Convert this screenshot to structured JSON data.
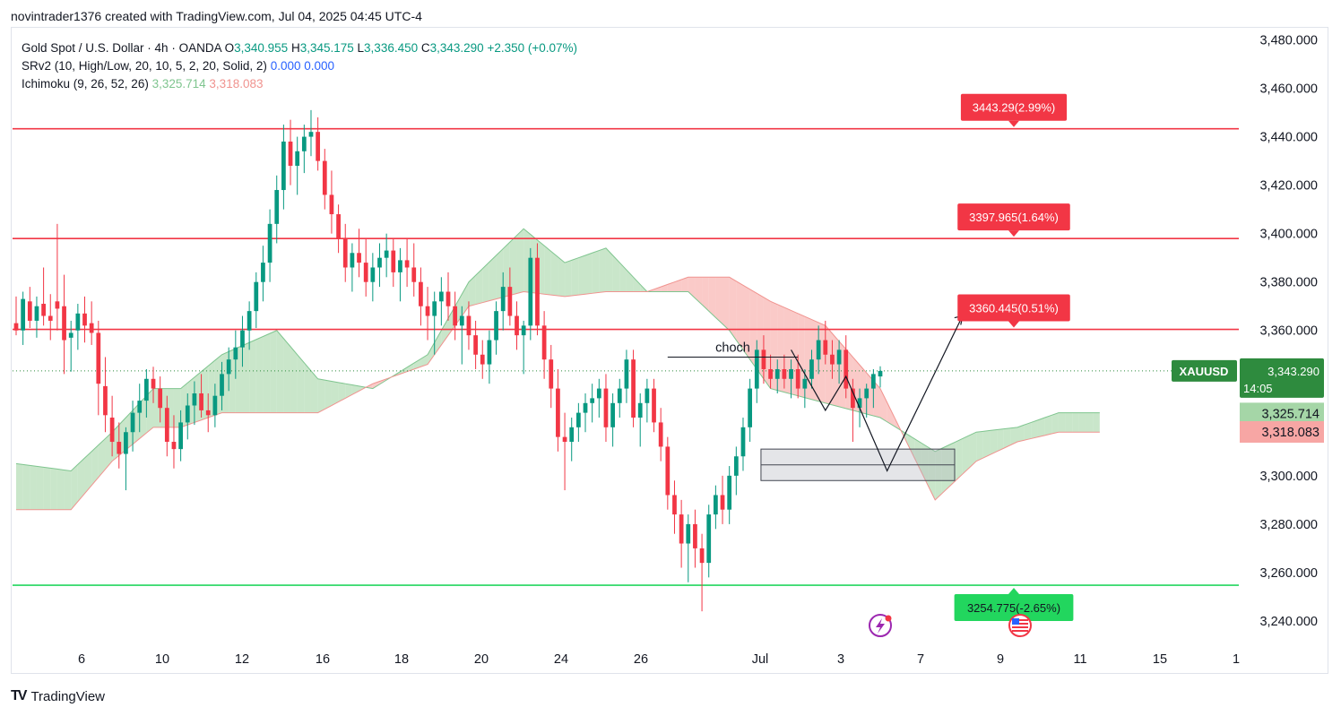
{
  "header": {
    "title": "novintrader1376 created with TradingView.com, Jul 04, 2025 04:45 UTC-4"
  },
  "legend": {
    "symbol": "Gold Spot / U.S. Dollar · 4h · OANDA",
    "o_label": "O",
    "o": "3,340.955",
    "h_label": "H",
    "h": "3,345.175",
    "l_label": "L",
    "l": "3,336.450",
    "c_label": "C",
    "c": "3,343.290",
    "change": "+2.350 (+0.07%)",
    "srv2": "SRv2 (10, High/Low, 20, 10, 5, 2, 20, Solid, 2)",
    "srv2_v1": "0.000",
    "srv2_v2": "0.000",
    "ichimoku": "Ichimoku (9, 26, 52, 26)",
    "ichi_v1": "3,325.714",
    "ichi_v2": "3,318.083"
  },
  "footer": {
    "logo": "TV",
    "brand": "TradingView"
  },
  "colors": {
    "up": "#089981",
    "down": "#f23645",
    "cloud_up": "#a5d6a7",
    "cloud_down": "#f7a6a4",
    "support": "#22d65e",
    "resistance": "#f23645",
    "price_tag": "#2e8b3e"
  },
  "chart_data": {
    "type": "candlestick",
    "symbol": "XAUUSD",
    "timeframe": "4h",
    "ylim": [
      3230,
      3485
    ],
    "y_ticks": [
      "3,240.000",
      "3,260.000",
      "3,280.000",
      "3,300.000",
      "3,320.000",
      "3,340.000",
      "3,360.000",
      "3,380.000",
      "3,400.000",
      "3,420.000",
      "3,440.000",
      "3,460.000",
      "3,480.000"
    ],
    "y_tick_values": [
      3240,
      3260,
      3280,
      3300,
      3320,
      3340,
      3360,
      3380,
      3400,
      3420,
      3440,
      3460,
      3480
    ],
    "x_ticks": [
      "6",
      "10",
      "12",
      "16",
      "18",
      "20",
      "24",
      "26",
      "Jul",
      "3",
      "7",
      "9",
      "11",
      "15",
      "1"
    ],
    "horizontal_levels": [
      {
        "value": 3443.29,
        "label": "3443.29(2.99%)",
        "kind": "resistance"
      },
      {
        "value": 3397.965,
        "label": "3397.965(1.64%)",
        "kind": "resistance"
      },
      {
        "value": 3360.445,
        "label": "3360.445(0.51%)",
        "kind": "resistance"
      },
      {
        "value": 3254.775,
        "label": "3254.775(-2.65%)",
        "kind": "support"
      }
    ],
    "annotations": [
      {
        "text": "choch",
        "value": 3349
      }
    ],
    "demand_zone": {
      "top": 3311,
      "bottom": 3298
    },
    "current_price": {
      "symbol_label": "XAUUSD",
      "value": "3,343.290",
      "countdown": "14:05",
      "y": 3343.29
    },
    "cloud_labels": [
      {
        "value": "3,325.714",
        "y": 3325.714,
        "kind": "up"
      },
      {
        "value": "3,318.083",
        "y": 3318.083,
        "kind": "down"
      }
    ],
    "candles": [
      [
        3363,
        3374,
        3358,
        3360
      ],
      [
        3360,
        3376,
        3354,
        3373
      ],
      [
        3372,
        3378,
        3361,
        3364
      ],
      [
        3364,
        3374,
        3357,
        3370
      ],
      [
        3371,
        3386,
        3362,
        3366
      ],
      [
        3366,
        3375,
        3356,
        3364
      ],
      [
        3372,
        3404,
        3360,
        3369
      ],
      [
        3370,
        3383,
        3342,
        3356
      ],
      [
        3357,
        3364,
        3343,
        3359
      ],
      [
        3360,
        3371,
        3352,
        3367
      ],
      [
        3367,
        3374,
        3355,
        3362
      ],
      [
        3363,
        3372,
        3354,
        3359
      ],
      [
        3359,
        3364,
        3325,
        3338
      ],
      [
        3337,
        3349,
        3318,
        3325
      ],
      [
        3324,
        3333,
        3308,
        3314
      ],
      [
        3314,
        3322,
        3303,
        3309
      ],
      [
        3309,
        3320,
        3294,
        3318
      ],
      [
        3318,
        3331,
        3310,
        3326
      ],
      [
        3326,
        3338,
        3318,
        3331
      ],
      [
        3331,
        3344,
        3324,
        3340
      ],
      [
        3340,
        3345,
        3330,
        3336
      ],
      [
        3336,
        3341,
        3322,
        3328
      ],
      [
        3328,
        3333,
        3308,
        3314
      ],
      [
        3314,
        3325,
        3303,
        3311
      ],
      [
        3311,
        3327,
        3306,
        3322
      ],
      [
        3322,
        3334,
        3315,
        3329
      ],
      [
        3329,
        3339,
        3321,
        3334
      ],
      [
        3334,
        3342,
        3324,
        3327
      ],
      [
        3327,
        3334,
        3318,
        3325
      ],
      [
        3325,
        3338,
        3320,
        3333
      ],
      [
        3333,
        3347,
        3327,
        3342
      ],
      [
        3342,
        3353,
        3335,
        3348
      ],
      [
        3348,
        3360,
        3340,
        3353
      ],
      [
        3353,
        3366,
        3345,
        3360
      ],
      [
        3360,
        3372,
        3352,
        3368
      ],
      [
        3368,
        3384,
        3361,
        3380
      ],
      [
        3380,
        3395,
        3372,
        3388
      ],
      [
        3388,
        3410,
        3380,
        3404
      ],
      [
        3404,
        3424,
        3396,
        3418
      ],
      [
        3418,
        3445,
        3410,
        3438
      ],
      [
        3438,
        3447,
        3420,
        3428
      ],
      [
        3428,
        3440,
        3416,
        3434
      ],
      [
        3434,
        3445,
        3425,
        3440
      ],
      [
        3440,
        3451,
        3432,
        3442
      ],
      [
        3442,
        3448,
        3426,
        3430
      ],
      [
        3430,
        3435,
        3410,
        3416
      ],
      [
        3416,
        3426,
        3400,
        3408
      ],
      [
        3408,
        3412,
        3392,
        3398
      ],
      [
        3398,
        3404,
        3380,
        3386
      ],
      [
        3386,
        3396,
        3376,
        3392
      ],
      [
        3392,
        3402,
        3382,
        3388
      ],
      [
        3388,
        3398,
        3374,
        3380
      ],
      [
        3380,
        3392,
        3372,
        3386
      ],
      [
        3386,
        3396,
        3378,
        3390
      ],
      [
        3390,
        3400,
        3382,
        3393
      ],
      [
        3393,
        3398,
        3378,
        3384
      ],
      [
        3384,
        3394,
        3372,
        3389
      ],
      [
        3389,
        3398,
        3378,
        3386
      ],
      [
        3386,
        3396,
        3374,
        3380
      ],
      [
        3380,
        3386,
        3362,
        3370
      ],
      [
        3370,
        3378,
        3356,
        3366
      ],
      [
        3366,
        3376,
        3350,
        3372
      ],
      [
        3372,
        3382,
        3362,
        3376
      ],
      [
        3376,
        3384,
        3364,
        3370
      ],
      [
        3370,
        3376,
        3356,
        3362
      ],
      [
        3362,
        3370,
        3346,
        3366
      ],
      [
        3366,
        3372,
        3352,
        3358
      ],
      [
        3358,
        3364,
        3344,
        3350
      ],
      [
        3350,
        3356,
        3340,
        3346
      ],
      [
        3346,
        3360,
        3338,
        3356
      ],
      [
        3356,
        3372,
        3350,
        3368
      ],
      [
        3368,
        3384,
        3360,
        3378
      ],
      [
        3378,
        3386,
        3362,
        3366
      ],
      [
        3366,
        3372,
        3352,
        3358
      ],
      [
        3358,
        3364,
        3342,
        3362
      ],
      [
        3362,
        3394,
        3356,
        3390
      ],
      [
        3390,
        3396,
        3358,
        3362
      ],
      [
        3362,
        3368,
        3340,
        3348
      ],
      [
        3348,
        3354,
        3328,
        3336
      ],
      [
        3336,
        3344,
        3310,
        3316
      ],
      [
        3316,
        3326,
        3294,
        3314
      ],
      [
        3314,
        3324,
        3306,
        3320
      ],
      [
        3320,
        3330,
        3314,
        3326
      ],
      [
        3326,
        3334,
        3318,
        3330
      ],
      [
        3330,
        3338,
        3322,
        3332
      ],
      [
        3332,
        3340,
        3324,
        3336
      ],
      [
        3336,
        3342,
        3314,
        3320
      ],
      [
        3320,
        3334,
        3312,
        3330
      ],
      [
        3330,
        3340,
        3324,
        3336
      ],
      [
        3336,
        3352,
        3330,
        3348
      ],
      [
        3348,
        3352,
        3320,
        3324
      ],
      [
        3324,
        3334,
        3312,
        3330
      ],
      [
        3330,
        3340,
        3322,
        3336
      ],
      [
        3336,
        3340,
        3318,
        3322
      ],
      [
        3322,
        3328,
        3306,
        3312
      ],
      [
        3312,
        3316,
        3286,
        3292
      ],
      [
        3292,
        3298,
        3276,
        3284
      ],
      [
        3284,
        3290,
        3262,
        3272
      ],
      [
        3272,
        3284,
        3256,
        3280
      ],
      [
        3280,
        3286,
        3262,
        3270
      ],
      [
        3270,
        3276,
        3244,
        3264
      ],
      [
        3264,
        3288,
        3258,
        3284
      ],
      [
        3284,
        3296,
        3278,
        3292
      ],
      [
        3292,
        3300,
        3280,
        3286
      ],
      [
        3286,
        3304,
        3280,
        3300
      ],
      [
        3300,
        3312,
        3292,
        3308
      ],
      [
        3308,
        3324,
        3302,
        3320
      ],
      [
        3320,
        3340,
        3314,
        3336
      ],
      [
        3336,
        3356,
        3330,
        3352
      ],
      [
        3352,
        3358,
        3338,
        3344
      ],
      [
        3344,
        3350,
        3336,
        3340
      ],
      [
        3340,
        3348,
        3334,
        3344
      ],
      [
        3344,
        3350,
        3336,
        3340
      ],
      [
        3340,
        3348,
        3332,
        3344
      ],
      [
        3344,
        3350,
        3332,
        3336
      ],
      [
        3336,
        3344,
        3328,
        3340
      ],
      [
        3340,
        3352,
        3336,
        3348
      ],
      [
        3348,
        3362,
        3342,
        3356
      ],
      [
        3356,
        3364,
        3346,
        3350
      ],
      [
        3350,
        3356,
        3340,
        3346
      ],
      [
        3346,
        3356,
        3338,
        3352
      ],
      [
        3352,
        3358,
        3332,
        3336
      ],
      [
        3336,
        3340,
        3314,
        3328
      ],
      [
        3328,
        3336,
        3320,
        3332
      ],
      [
        3332,
        3338,
        3324,
        3336
      ],
      [
        3336,
        3344,
        3328,
        3342
      ],
      [
        3341,
        3345.175,
        3336.45,
        3343.29
      ]
    ],
    "ichimoku_cloud": {
      "note": "Senkou span A/B values at selected candle indices (cloud shifted forward).",
      "span_a": [
        [
          0,
          3305
        ],
        [
          8,
          3302
        ],
        [
          14,
          3318
        ],
        [
          20,
          3336
        ],
        [
          24,
          3336
        ],
        [
          30,
          3350
        ],
        [
          38,
          3360
        ],
        [
          44,
          3340
        ],
        [
          52,
          3336
        ],
        [
          60,
          3350
        ],
        [
          66,
          3380
        ],
        [
          74,
          3402
        ],
        [
          80,
          3388
        ],
        [
          86,
          3394
        ],
        [
          92,
          3376
        ],
        [
          98,
          3376
        ],
        [
          104,
          3360
        ],
        [
          110,
          3336
        ],
        [
          118,
          3330
        ],
        [
          126,
          3324
        ],
        [
          134,
          3310
        ],
        [
          140,
          3318
        ],
        [
          146,
          3320
        ],
        [
          152,
          3326
        ],
        [
          158,
          3326
        ]
      ],
      "span_b": [
        [
          0,
          3286
        ],
        [
          8,
          3286
        ],
        [
          14,
          3306
        ],
        [
          20,
          3320
        ],
        [
          24,
          3320
        ],
        [
          30,
          3326
        ],
        [
          38,
          3326
        ],
        [
          44,
          3326
        ],
        [
          52,
          3338
        ],
        [
          60,
          3346
        ],
        [
          66,
          3370
        ],
        [
          74,
          3376
        ],
        [
          80,
          3374
        ],
        [
          86,
          3376
        ],
        [
          92,
          3376
        ],
        [
          98,
          3382
        ],
        [
          104,
          3382
        ],
        [
          110,
          3372
        ],
        [
          118,
          3362
        ],
        [
          126,
          3336
        ],
        [
          134,
          3290
        ],
        [
          140,
          3306
        ],
        [
          146,
          3314
        ],
        [
          152,
          3318
        ],
        [
          158,
          3318
        ]
      ]
    }
  }
}
